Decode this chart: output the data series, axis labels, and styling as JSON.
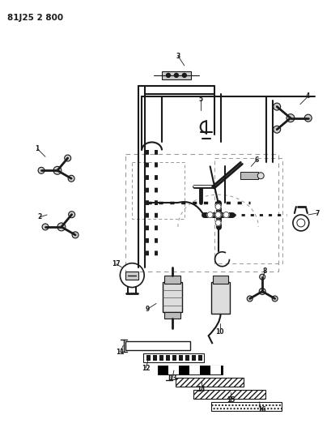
{
  "title": "81J25 2 800",
  "bg_color": "#ffffff",
  "fig_width": 4.09,
  "fig_height": 5.33,
  "dpi": 100
}
